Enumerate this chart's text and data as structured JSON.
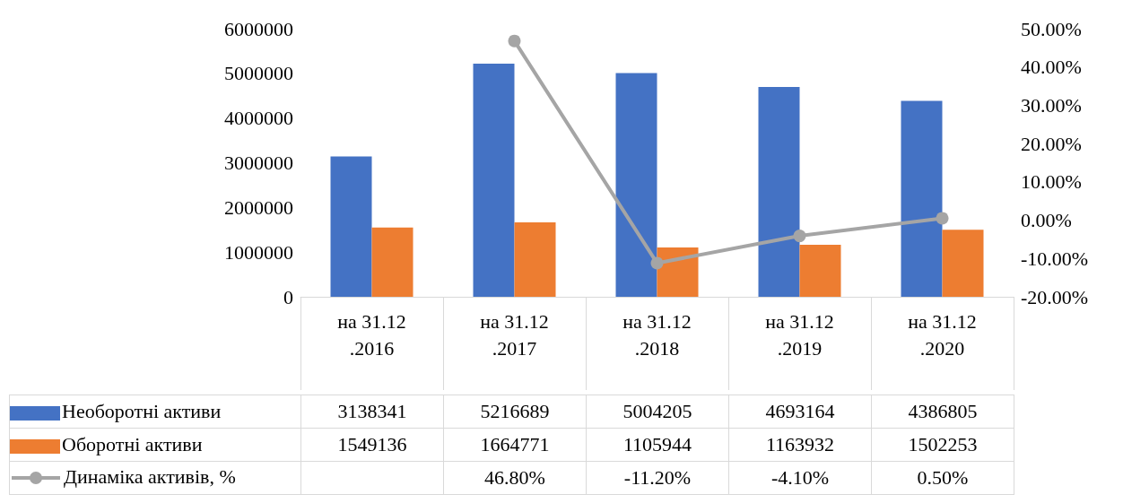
{
  "chart_data": {
    "type": "bar",
    "categories": [
      "на 31.12.2016",
      "на 31.12.2017",
      "на 31.12.2018",
      "на 31.12.2019",
      "на 31.12.2020"
    ],
    "series": [
      {
        "name": "Необоротні активи",
        "color": "#4472c4",
        "values": [
          3138341,
          5216689,
          5004205,
          4693164,
          4386805
        ],
        "value_labels": [
          "3138341",
          "5216689",
          "5004205",
          "4693164",
          "4386805"
        ]
      },
      {
        "name": "Оборотні активи",
        "color": "#ed7d31",
        "values": [
          1549136,
          1664771,
          1105944,
          1163932,
          1502253
        ],
        "value_labels": [
          "1549136",
          "1664771",
          "1105944",
          "1163932",
          "1502253"
        ]
      },
      {
        "name": "Динаміка активів, %",
        "type": "line",
        "axis": "y2",
        "color": "#a5a5a5",
        "marker": "circle",
        "values": [
          null,
          46.8,
          -11.2,
          -4.1,
          0.5
        ],
        "value_labels": [
          null,
          "46.80%",
          "-11.20%",
          "-4.10%",
          "0.50%"
        ]
      }
    ],
    "ylim": [
      0,
      6000000
    ],
    "yticks": [
      0,
      1000000,
      2000000,
      3000000,
      4000000,
      5000000,
      6000000
    ],
    "y2lim": [
      -20,
      50
    ],
    "y2ticks": [
      {
        "value": -20,
        "label": "-20.00%"
      },
      {
        "value": -10,
        "label": "-10.00%"
      },
      {
        "value": 0,
        "label": "0.00%"
      },
      {
        "value": 10,
        "label": "10.00%"
      },
      {
        "value": 20,
        "label": "20.00%"
      },
      {
        "value": 30,
        "label": "30.00%"
      },
      {
        "value": 40,
        "label": "40.00%"
      },
      {
        "value": 50,
        "label": "50.00%"
      }
    ],
    "grid": false,
    "legend": "bottom"
  }
}
